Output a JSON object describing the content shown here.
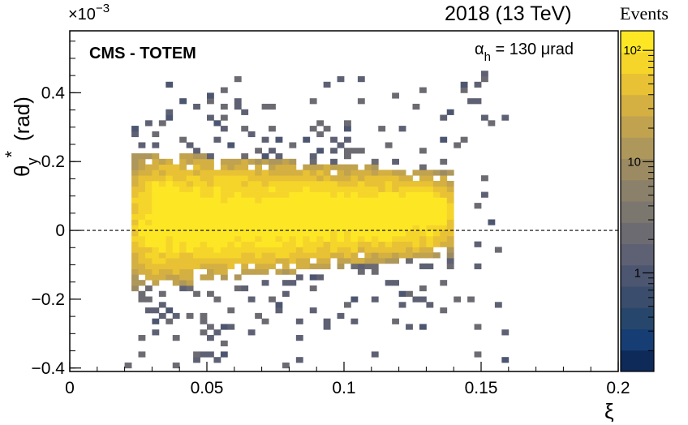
{
  "header": {
    "run_label": "2018 (13 TeV)",
    "colorbar_title": "Events",
    "experiment": "CMS - TOTEM",
    "annotation": {
      "symbol": "α",
      "subscript": "h",
      "value": " = 130 μrad"
    }
  },
  "axes": {
    "x_title": "ξ",
    "y_title_symbol": "θ",
    "y_title_super": "*",
    "y_title_sub": "y",
    "y_title_unit": "(rad)",
    "y_multiplier": "×10",
    "y_multiplier_exp": "−3"
  },
  "chart_data": {
    "type": "heatmap",
    "title": "2018 (13 TeV)",
    "xlabel": "ξ",
    "ylabel": "θ*y (rad)",
    "xlim": [
      0,
      0.2
    ],
    "ylim": [
      -0.41,
      0.58
    ],
    "y_scale_factor": 0.001,
    "x_ticks": [
      0,
      0.05,
      0.1,
      0.15,
      0.2
    ],
    "x_tick_labels": [
      "0",
      "0.05",
      "0.1",
      "0.15",
      "0.2"
    ],
    "y_ticks": [
      -0.4,
      -0.2,
      0,
      0.2,
      0.4
    ],
    "y_tick_labels": [
      "−0.4",
      "−0.2",
      "0",
      "0.2",
      "0.4"
    ],
    "reference_line_y": 0,
    "bins": {
      "x_width": 0.0025,
      "y_width": 0.016
    },
    "populated_region": {
      "xi_min": 0.02,
      "xi_max": 0.16,
      "core": {
        "xi_range": [
          0.022,
          0.14
        ],
        "theta_center_at_xi_min": 0.03,
        "theta_center_at_xi_max": 0.05,
        "half_width_at_xi_min": 0.2,
        "half_width_at_xi_max": 0.12
      },
      "peak_counts": 150
    },
    "colorbar": {
      "scale": "log",
      "range": [
        0.13,
        150
      ],
      "ticks": [
        1,
        10,
        100
      ],
      "tick_labels": [
        "1",
        "10",
        "10²"
      ],
      "palette": [
        "#0d2a59",
        "#163e74",
        "#26476b",
        "#3a4d6c",
        "#4c5670",
        "#5e6173",
        "#6d6b72",
        "#7c776e",
        "#8b8069",
        "#9c8b62",
        "#ae975a",
        "#c0a24f",
        "#d4b042",
        "#e8c234",
        "#f6d52b",
        "#fde725"
      ]
    }
  }
}
